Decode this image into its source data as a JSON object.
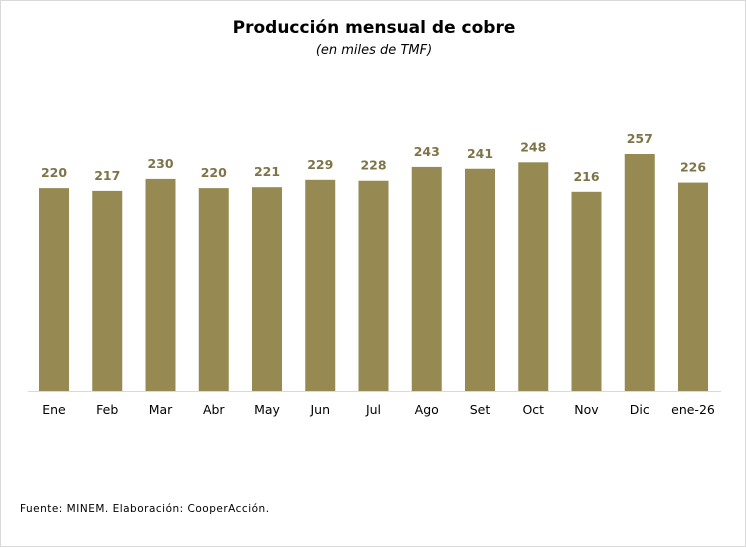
{
  "chart_data": {
    "type": "bar",
    "title": "Producción mensual de cobre",
    "subtitle": "(en miles de TMF)",
    "categories": [
      "Ene",
      "Feb",
      "Mar",
      "Abr",
      "May",
      "Jun",
      "Jul",
      "Ago",
      "Set",
      "Oct",
      "Nov",
      "Dic",
      "ene-26"
    ],
    "values": [
      220,
      217,
      230,
      220,
      221,
      229,
      228,
      243,
      241,
      248,
      216,
      257,
      226
    ],
    "xlabel": "",
    "ylabel": "",
    "ylim": [
      0,
      257
    ],
    "grid": false,
    "bar_color": "#968a52",
    "label_color": "#7f7448",
    "source": "Fuente: MINEM. Elaboración: CooperAcción."
  }
}
